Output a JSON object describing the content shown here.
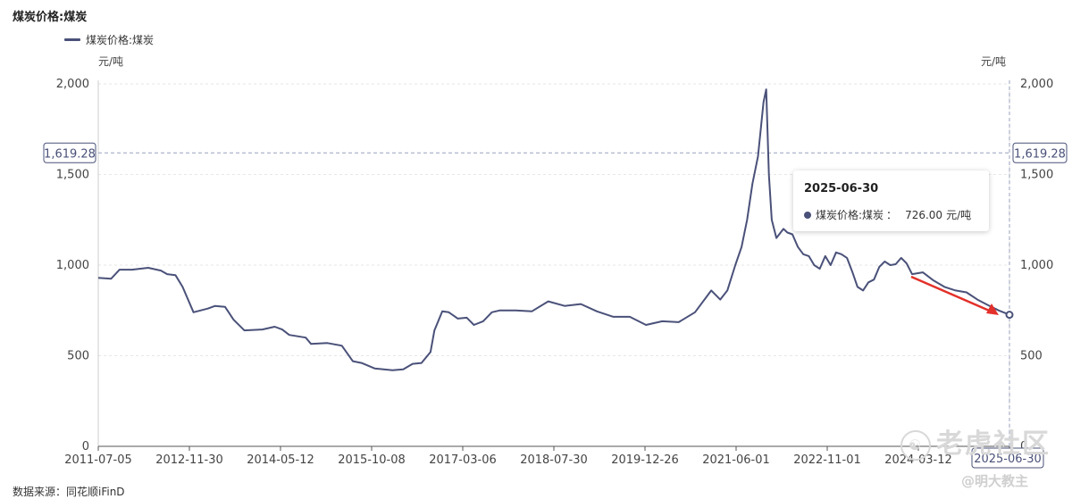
{
  "title": "煤炭价格:煤炭",
  "legend_label": "煤炭价格:煤炭",
  "unit_left": "元/吨",
  "unit_right": "元/吨",
  "source": "数据来源：同花顺iFinD",
  "watermark": "老虎社区",
  "author": "@明大教主",
  "colors": {
    "line": "#4a5179",
    "arrow": "#e3302a",
    "crosshair": "#9aa1bd"
  },
  "crosshair": {
    "value_label": "1,619.28",
    "date_label": "2025-06-30"
  },
  "tooltip": {
    "date": "2025-06-30",
    "series": "煤炭价格:煤炭",
    "sep": "：",
    "value": "726.00",
    "unit": "元/吨"
  },
  "chart_data": {
    "type": "line",
    "title": "煤炭价格:煤炭",
    "ylabel": "元/吨",
    "ylim": [
      0,
      2000
    ],
    "yticks": [
      0,
      500,
      1000,
      1500,
      2000
    ],
    "ytick_labels": [
      "0",
      "500",
      "1,000",
      "1,500",
      "2,000"
    ],
    "xlim": [
      "2011-07-05",
      "2025-06-30"
    ],
    "xtick_labels": [
      "2011-07-05",
      "2012-11-30",
      "2014-05-12",
      "2015-10-08",
      "2017-03-06",
      "2018-07-30",
      "2019-12-26",
      "2021-06-01",
      "2022-11-01",
      "2024-03-12",
      "2025-06-30"
    ],
    "grid": true,
    "legend": "top-left",
    "series": [
      {
        "name": "煤炭价格:煤炭",
        "x": [
          "2011-07-05",
          "2011-09-15",
          "2011-11-01",
          "2012-01-10",
          "2012-04-10",
          "2012-06-20",
          "2012-07-25",
          "2012-09-10",
          "2012-10-20",
          "2012-12-20",
          "2013-03-10",
          "2013-04-20",
          "2013-06-15",
          "2013-08-01",
          "2013-10-01",
          "2014-01-10",
          "2014-03-20",
          "2014-05-01",
          "2014-06-10",
          "2014-09-10",
          "2014-10-10",
          "2015-01-10",
          "2015-04-01",
          "2015-06-01",
          "2015-07-20",
          "2015-10-01",
          "2016-01-10",
          "2016-03-10",
          "2016-05-01",
          "2016-06-20",
          "2016-08-10",
          "2016-09-01",
          "2016-10-15",
          "2016-11-20",
          "2017-01-10",
          "2017-03-01",
          "2017-04-10",
          "2017-06-01",
          "2017-07-20",
          "2017-09-01",
          "2017-12-01",
          "2018-03-01",
          "2018-06-01",
          "2018-09-01",
          "2018-12-01",
          "2019-03-01",
          "2019-06-01",
          "2019-09-01",
          "2019-12-01",
          "2020-03-01",
          "2020-06-01",
          "2020-09-01",
          "2020-12-01",
          "2021-01-20",
          "2021-03-01",
          "2021-04-15",
          "2021-05-20",
          "2021-06-20",
          "2021-07-20",
          "2021-08-20",
          "2021-09-20",
          "2021-10-05",
          "2021-10-20",
          "2021-11-05",
          "2021-12-01",
          "2022-01-10",
          "2022-02-01",
          "2022-03-01",
          "2022-04-01",
          "2022-05-01",
          "2022-06-01",
          "2022-07-01",
          "2022-08-01",
          "2022-09-01",
          "2022-10-01",
          "2022-11-01",
          "2022-12-01",
          "2023-01-01",
          "2023-02-01",
          "2023-03-01",
          "2023-04-01",
          "2023-05-01",
          "2023-06-01",
          "2023-07-01",
          "2023-08-01",
          "2023-09-01",
          "2023-10-01",
          "2023-11-01",
          "2023-12-01",
          "2024-01-01",
          "2024-03-01",
          "2024-05-01",
          "2024-07-01",
          "2024-09-01",
          "2024-11-01",
          "2025-01-01",
          "2025-03-01",
          "2025-05-01",
          "2025-06-30"
        ],
        "values": [
          930,
          925,
          975,
          975,
          985,
          970,
          950,
          945,
          880,
          740,
          760,
          775,
          770,
          700,
          640,
          645,
          660,
          645,
          615,
          600,
          565,
          570,
          555,
          470,
          460,
          430,
          420,
          425,
          455,
          460,
          520,
          640,
          745,
          740,
          705,
          710,
          670,
          690,
          740,
          750,
          750,
          745,
          800,
          775,
          785,
          745,
          715,
          715,
          670,
          690,
          685,
          740,
          860,
          810,
          860,
          1000,
          1100,
          1250,
          1450,
          1600,
          1900,
          1970,
          1500,
          1250,
          1150,
          1200,
          1180,
          1170,
          1100,
          1060,
          1050,
          1000,
          980,
          1050,
          1000,
          1070,
          1060,
          1040,
          960,
          880,
          860,
          905,
          920,
          990,
          1020,
          1000,
          1005,
          1040,
          1010,
          950,
          960,
          915,
          880,
          860,
          850,
          810,
          780,
          750,
          726
        ]
      }
    ]
  }
}
